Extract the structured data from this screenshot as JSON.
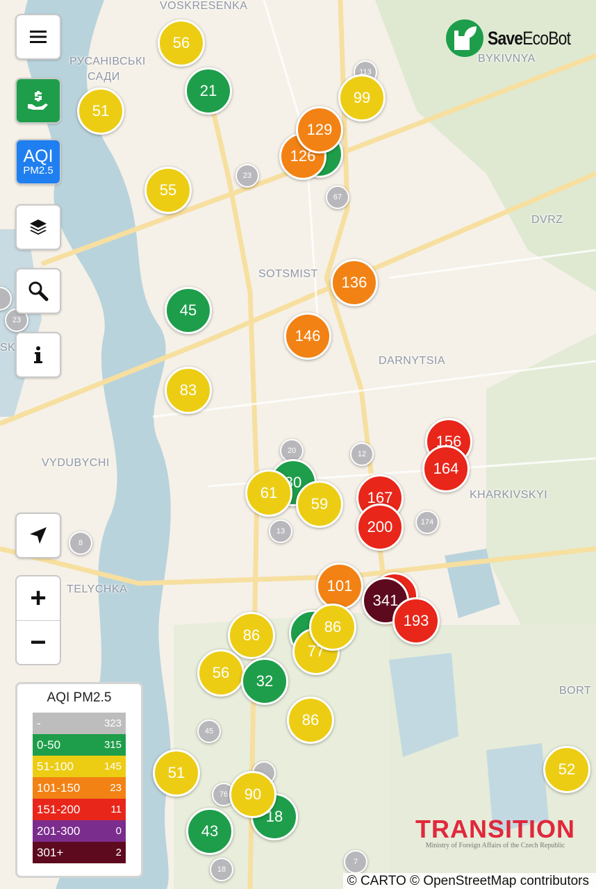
{
  "app": {
    "brand": "SaveEcoBot",
    "brand_bold": "Save",
    "brand_rest": "EcoBot"
  },
  "controls": {
    "menu_icon": "hamburger-menu-icon",
    "donate_icon": "hand-dollar-icon",
    "aqi_button": {
      "main": "AQI",
      "sub": "PM2.5"
    },
    "layers_icon": "layers-icon",
    "search_icon": "search-icon",
    "info_icon": "info-icon",
    "locate_icon": "navigation-arrow-icon",
    "zoom_in": "+",
    "zoom_out": "−"
  },
  "legend": {
    "title": "AQI PM2.5",
    "rows": [
      {
        "label": "-",
        "count": "323",
        "color": "#bdbdbd"
      },
      {
        "label": "0-50",
        "count": "315",
        "color": "#1e9e4a"
      },
      {
        "label": "51-100",
        "count": "145",
        "color": "#eccd14"
      },
      {
        "label": "101-150",
        "count": "23",
        "color": "#f28214"
      },
      {
        "label": "151-200",
        "count": "11",
        "color": "#e8261a"
      },
      {
        "label": "201-300",
        "count": "0",
        "color": "#7b2d8e"
      },
      {
        "label": "301+",
        "count": "2",
        "color": "#5e0a1e"
      }
    ]
  },
  "colors": {
    "gray": "#b8b8bc",
    "green": "#1e9e4a",
    "yellow": "#eccd14",
    "orange": "#f28214",
    "red": "#e8261a",
    "maroon": "#5e0a1e"
  },
  "map_labels": [
    "VOSKRESENKA",
    "РУСАНІВСЬКІ",
    "САДИ",
    "BYKIVNYA",
    "DVRZ",
    "SOTSMIST",
    "DARNYTSIA",
    "VYDUBYCHI",
    "KHARKIVSKYI",
    "TELYCHKA",
    "BORT",
    "SK"
  ],
  "markers": [
    {
      "value": "56",
      "cat": "yellow"
    },
    {
      "value": "21",
      "cat": "green"
    },
    {
      "value": "51",
      "cat": "yellow"
    },
    {
      "value": "99",
      "cat": "yellow"
    },
    {
      "value": "",
      "cat": "green"
    },
    {
      "value": "126",
      "cat": "orange"
    },
    {
      "value": "129",
      "cat": "orange"
    },
    {
      "value": "55",
      "cat": "yellow"
    },
    {
      "value": "136",
      "cat": "orange"
    },
    {
      "value": "45",
      "cat": "green"
    },
    {
      "value": "146",
      "cat": "orange"
    },
    {
      "value": "83",
      "cat": "yellow"
    },
    {
      "value": "156",
      "cat": "red"
    },
    {
      "value": "164",
      "cat": "red"
    },
    {
      "value": "30",
      "cat": "green"
    },
    {
      "value": "61",
      "cat": "yellow"
    },
    {
      "value": "59",
      "cat": "yellow"
    },
    {
      "value": "167",
      "cat": "red"
    },
    {
      "value": "200",
      "cat": "red"
    },
    {
      "value": "101",
      "cat": "orange"
    },
    {
      "value": "",
      "cat": "red"
    },
    {
      "value": "341",
      "cat": "maroon"
    },
    {
      "value": "193",
      "cat": "red"
    },
    {
      "value": "",
      "cat": "green"
    },
    {
      "value": "77",
      "cat": "yellow"
    },
    {
      "value": "86",
      "cat": "yellow"
    },
    {
      "value": "86",
      "cat": "yellow"
    },
    {
      "value": "56",
      "cat": "yellow"
    },
    {
      "value": "32",
      "cat": "green"
    },
    {
      "value": "86",
      "cat": "yellow"
    },
    {
      "value": "51",
      "cat": "yellow"
    },
    {
      "value": "52",
      "cat": "yellow"
    },
    {
      "value": "18",
      "cat": "green"
    },
    {
      "value": "90",
      "cat": "yellow"
    },
    {
      "value": "43",
      "cat": "green"
    }
  ],
  "clusters": [
    "113",
    "23",
    "67",
    "23",
    "20",
    "12",
    "13",
    "174",
    "8",
    "45",
    "76",
    "",
    "18",
    "7",
    ""
  ],
  "partner": {
    "name": "TRANSITION",
    "subtitle": "Ministry of Foreign Affairs of the Czech Republic"
  },
  "attribution": "© CARTO © OpenStreetMap contributors"
}
